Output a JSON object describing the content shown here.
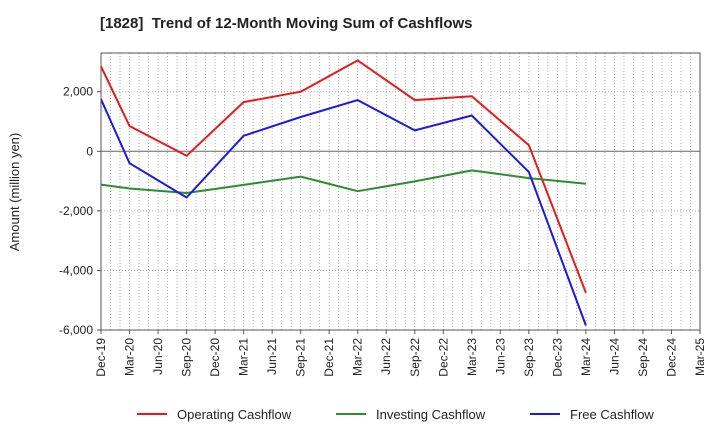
{
  "chart_data": {
    "type": "line",
    "title": "[1828]  Trend of 12-Month Moving Sum of Cashflows",
    "ylabel": "Amount (million yen)",
    "xlabel": "",
    "ylim": [
      -6000,
      3300
    ],
    "yticks": [
      2000,
      0,
      -2000,
      -4000,
      -6000
    ],
    "ytick_labels": [
      "2,000",
      "0",
      "-2,000",
      "-4,000",
      "-6,000"
    ],
    "categories": [
      "Dec-19",
      "Mar-20",
      "Jun-20",
      "Sep-20",
      "Dec-20",
      "Mar-21",
      "Jun-21",
      "Sep-21",
      "Dec-21",
      "Mar-22",
      "Jun-22",
      "Sep-22",
      "Dec-22",
      "Mar-23",
      "Jun-23",
      "Sep-23",
      "Dec-23",
      "Mar-24",
      "Jun-24",
      "Sep-24",
      "Dec-24",
      "Mar-25"
    ],
    "grid": true,
    "legend_position": "bottom",
    "series": [
      {
        "name": "Operating Cashflow",
        "color": "#e8191a",
        "points": [
          [
            "Dec-19",
            2850
          ],
          [
            "Mar-20",
            850
          ],
          [
            "Sep-20",
            -150
          ],
          [
            "Mar-21",
            1650
          ],
          [
            "Sep-21",
            2000
          ],
          [
            "Mar-22",
            3050
          ],
          [
            "Sep-22",
            1720
          ],
          [
            "Mar-23",
            1850
          ],
          [
            "Sep-23",
            200
          ],
          [
            "Mar-24",
            -4750
          ]
        ]
      },
      {
        "name": "Investing Cashflow",
        "color": "#2e8b2e",
        "points": [
          [
            "Dec-19",
            -1120
          ],
          [
            "Mar-20",
            -1250
          ],
          [
            "Sep-20",
            -1400
          ],
          [
            "Mar-21",
            -1130
          ],
          [
            "Sep-21",
            -850
          ],
          [
            "Mar-22",
            -1340
          ],
          [
            "Sep-22",
            -1010
          ],
          [
            "Mar-23",
            -640
          ],
          [
            "Sep-23",
            -900
          ],
          [
            "Mar-24",
            -1090
          ]
        ]
      },
      {
        "name": "Free Cashflow",
        "color": "#1a1adf",
        "points": [
          [
            "Dec-19",
            1750
          ],
          [
            "Mar-20",
            -400
          ],
          [
            "Sep-20",
            -1550
          ],
          [
            "Mar-21",
            520
          ],
          [
            "Sep-21",
            1150
          ],
          [
            "Mar-22",
            1720
          ],
          [
            "Sep-22",
            700
          ],
          [
            "Mar-23",
            1200
          ],
          [
            "Sep-23",
            -700
          ],
          [
            "Mar-24",
            -5850
          ]
        ]
      }
    ]
  }
}
